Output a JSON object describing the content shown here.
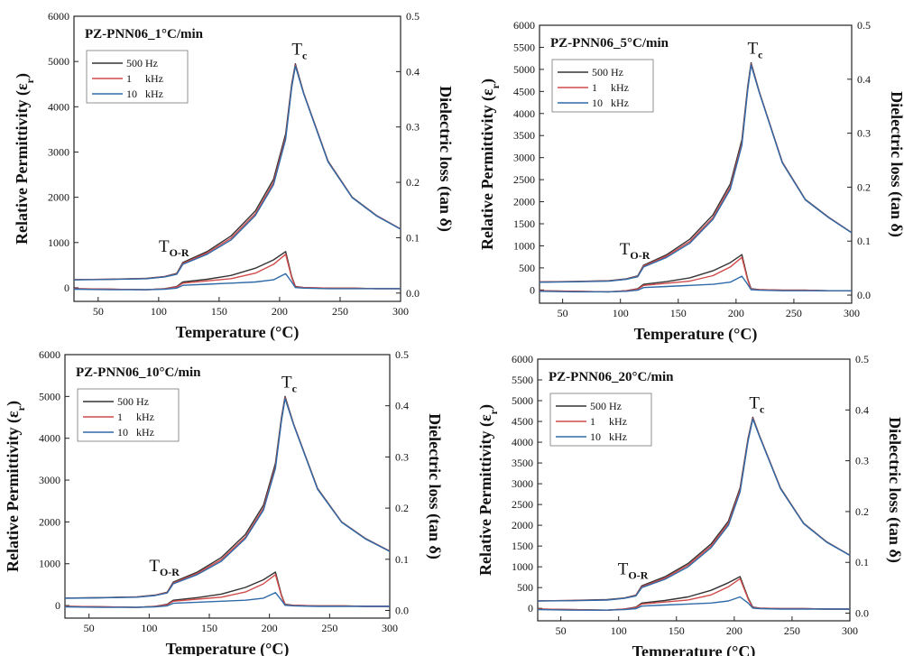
{
  "chart_data": [
    {
      "type": "line",
      "title": "PZ-PNN06_1°C/min",
      "xlabel": "Temperature (°C)",
      "ylabel": "Relative Permittivity (εr)",
      "y2label": "Dielectric loss (tan δ)",
      "xlim": [
        30,
        300
      ],
      "ylim": [
        -300,
        6000
      ],
      "y2lim": [
        -0.015,
        0.5
      ],
      "xticks": [
        50,
        100,
        150,
        200,
        250,
        300
      ],
      "yticks": [
        0,
        1000,
        2000,
        3000,
        4000,
        5000,
        6000
      ],
      "y2ticks": [
        0.0,
        0.1,
        0.2,
        0.3,
        0.4,
        0.5
      ],
      "legend_placement": "top-left",
      "annotations": [
        "TO-R",
        "Tc"
      ],
      "x": [
        30,
        60,
        90,
        105,
        115,
        120,
        140,
        160,
        180,
        195,
        205,
        210,
        213,
        220,
        240,
        260,
        280,
        300
      ],
      "series": [
        {
          "name": "500 Hz",
          "color": "#333333",
          "axis": "permittivity",
          "values": [
            180,
            190,
            210,
            250,
            320,
            560,
            800,
            1150,
            1700,
            2400,
            3400,
            4500,
            4950,
            4300,
            2800,
            2000,
            1600,
            1300
          ]
        },
        {
          "name": "1 kHz",
          "color": "#d04a4a",
          "axis": "permittivity",
          "values": [
            180,
            188,
            205,
            245,
            310,
            540,
            770,
            1100,
            1640,
            2330,
            3330,
            4450,
            4920,
            4290,
            2790,
            1995,
            1595,
            1300
          ]
        },
        {
          "name": "10 kHz",
          "color": "#2f6aa8",
          "axis": "permittivity",
          "values": [
            175,
            185,
            200,
            240,
            300,
            520,
            740,
            1060,
            1600,
            2280,
            3280,
            4420,
            4900,
            4280,
            2780,
            1990,
            1590,
            1295
          ]
        },
        {
          "name": "500 Hz",
          "color": "#333333",
          "axis": "loss",
          "values": [
            0.008,
            0.007,
            0.006,
            0.008,
            0.012,
            0.02,
            0.025,
            0.032,
            0.045,
            0.06,
            0.075,
            0.03,
            0.012,
            0.01,
            0.009,
            0.009,
            0.008,
            0.008
          ]
        },
        {
          "name": "1 kHz",
          "color": "#d04a4a",
          "axis": "loss",
          "values": [
            0.008,
            0.007,
            0.006,
            0.008,
            0.011,
            0.018,
            0.022,
            0.026,
            0.036,
            0.052,
            0.07,
            0.028,
            0.011,
            0.01,
            0.009,
            0.009,
            0.008,
            0.008
          ]
        },
        {
          "name": "10 kHz",
          "color": "#2f6aa8",
          "axis": "loss",
          "values": [
            0.007,
            0.006,
            0.006,
            0.007,
            0.009,
            0.014,
            0.016,
            0.018,
            0.02,
            0.024,
            0.035,
            0.02,
            0.01,
            0.009,
            0.008,
            0.008,
            0.008,
            0.008
          ]
        }
      ]
    },
    {
      "type": "line",
      "title": "PZ-PNN06_5°C/min",
      "xlabel": "Temperature (°C)",
      "ylabel": "Relative Permittivity (εr)",
      "y2label": "Dielectric loss (tan δ)",
      "xlim": [
        30,
        300
      ],
      "ylim": [
        -300,
        6000
      ],
      "y2lim": [
        -0.015,
        0.5
      ],
      "xticks": [
        50,
        100,
        150,
        200,
        250,
        300
      ],
      "yticks": [
        0,
        500,
        1000,
        1500,
        2000,
        2500,
        3000,
        3500,
        4000,
        4500,
        5000,
        5500,
        6000
      ],
      "y2ticks": [
        0.0,
        0.1,
        0.2,
        0.3,
        0.4,
        0.5
      ],
      "legend_placement": "top-left",
      "annotations": [
        "TO-R",
        "Tc"
      ],
      "x": [
        30,
        60,
        90,
        105,
        115,
        120,
        140,
        160,
        180,
        195,
        205,
        210,
        213,
        220,
        240,
        260,
        280,
        300
      ],
      "series": [
        {
          "name": "500 Hz",
          "color": "#333333",
          "axis": "permittivity",
          "values": [
            180,
            190,
            210,
            250,
            320,
            560,
            800,
            1150,
            1700,
            2400,
            3400,
            4600,
            5150,
            4500,
            2900,
            2050,
            1650,
            1300
          ]
        },
        {
          "name": "1 kHz",
          "color": "#d04a4a",
          "axis": "permittivity",
          "values": [
            180,
            188,
            205,
            245,
            310,
            540,
            770,
            1100,
            1640,
            2330,
            3330,
            4550,
            5120,
            4490,
            2890,
            2045,
            1645,
            1300
          ]
        },
        {
          "name": "10 kHz",
          "color": "#2f6aa8",
          "axis": "permittivity",
          "values": [
            175,
            185,
            200,
            240,
            300,
            520,
            740,
            1060,
            1600,
            2280,
            3280,
            4520,
            5100,
            4480,
            2880,
            2040,
            1640,
            1295
          ]
        },
        {
          "name": "500 Hz",
          "color": "#333333",
          "axis": "loss",
          "values": [
            0.008,
            0.007,
            0.006,
            0.008,
            0.012,
            0.02,
            0.025,
            0.032,
            0.045,
            0.06,
            0.075,
            0.03,
            0.012,
            0.01,
            0.009,
            0.009,
            0.008,
            0.008
          ]
        },
        {
          "name": "1 kHz",
          "color": "#d04a4a",
          "axis": "loss",
          "values": [
            0.008,
            0.007,
            0.006,
            0.008,
            0.011,
            0.018,
            0.022,
            0.026,
            0.036,
            0.052,
            0.07,
            0.028,
            0.011,
            0.01,
            0.009,
            0.009,
            0.008,
            0.008
          ]
        },
        {
          "name": "10 kHz",
          "color": "#2f6aa8",
          "axis": "loss",
          "values": [
            0.007,
            0.006,
            0.006,
            0.007,
            0.009,
            0.014,
            0.016,
            0.018,
            0.02,
            0.024,
            0.035,
            0.02,
            0.01,
            0.009,
            0.008,
            0.008,
            0.008,
            0.008
          ]
        }
      ]
    },
    {
      "type": "line",
      "title": "PZ-PNN06_10°C/min",
      "xlabel": "Temperature (°C)",
      "ylabel": "Relative Permittivity (εr)",
      "y2label": "Dielectric loss (tan δ)",
      "xlim": [
        30,
        300
      ],
      "ylim": [
        -300,
        6000
      ],
      "y2lim": [
        -0.015,
        0.5
      ],
      "xticks": [
        50,
        100,
        150,
        200,
        250,
        300
      ],
      "yticks": [
        0,
        1000,
        2000,
        3000,
        4000,
        5000,
        6000
      ],
      "y2ticks": [
        0.0,
        0.1,
        0.2,
        0.3,
        0.4,
        0.5
      ],
      "legend_placement": "top-left",
      "annotations": [
        "TO-R",
        "Tc"
      ],
      "x": [
        30,
        60,
        90,
        105,
        115,
        120,
        140,
        160,
        180,
        195,
        205,
        210,
        213,
        220,
        240,
        260,
        280,
        300
      ],
      "series": [
        {
          "name": "500 Hz",
          "color": "#333333",
          "axis": "permittivity",
          "values": [
            180,
            190,
            210,
            250,
            320,
            560,
            800,
            1150,
            1700,
            2400,
            3400,
            4500,
            5000,
            4350,
            2800,
            2000,
            1600,
            1300
          ]
        },
        {
          "name": "1 kHz",
          "color": "#d04a4a",
          "axis": "permittivity",
          "values": [
            180,
            188,
            205,
            245,
            310,
            540,
            770,
            1100,
            1640,
            2330,
            3330,
            4450,
            4970,
            4340,
            2790,
            1995,
            1595,
            1300
          ]
        },
        {
          "name": "10 kHz",
          "color": "#2f6aa8",
          "axis": "permittivity",
          "values": [
            175,
            185,
            200,
            240,
            300,
            520,
            740,
            1060,
            1600,
            2280,
            3280,
            4420,
            4950,
            4330,
            2780,
            1990,
            1590,
            1295
          ]
        },
        {
          "name": "500 Hz",
          "color": "#333333",
          "axis": "loss",
          "values": [
            0.008,
            0.007,
            0.006,
            0.008,
            0.012,
            0.02,
            0.025,
            0.032,
            0.045,
            0.06,
            0.075,
            0.03,
            0.012,
            0.01,
            0.009,
            0.009,
            0.008,
            0.008
          ]
        },
        {
          "name": "1 kHz",
          "color": "#d04a4a",
          "axis": "loss",
          "values": [
            0.008,
            0.007,
            0.006,
            0.008,
            0.011,
            0.018,
            0.022,
            0.026,
            0.036,
            0.052,
            0.07,
            0.028,
            0.011,
            0.01,
            0.009,
            0.009,
            0.008,
            0.008
          ]
        },
        {
          "name": "10 kHz",
          "color": "#2f6aa8",
          "axis": "loss",
          "values": [
            0.007,
            0.006,
            0.006,
            0.007,
            0.009,
            0.014,
            0.016,
            0.018,
            0.02,
            0.024,
            0.035,
            0.02,
            0.01,
            0.009,
            0.008,
            0.008,
            0.008,
            0.008
          ]
        }
      ]
    },
    {
      "type": "line",
      "title": "PZ-PNN06_20°C/min",
      "xlabel": "Temperature (°C)",
      "ylabel": "Relative Permittivity (εr)",
      "y2label": "Dielectric loss (tan δ)",
      "xlim": [
        30,
        300
      ],
      "ylim": [
        -300,
        6000
      ],
      "y2lim": [
        -0.015,
        0.5
      ],
      "xticks": [
        50,
        100,
        150,
        200,
        250,
        300
      ],
      "yticks": [
        0,
        500,
        1000,
        1500,
        2000,
        2500,
        3000,
        3500,
        4000,
        4500,
        5000,
        5500,
        6000
      ],
      "y2ticks": [
        0.0,
        0.1,
        0.2,
        0.3,
        0.4,
        0.5
      ],
      "legend_placement": "top-left",
      "annotations": [
        "TO-R",
        "Tc"
      ],
      "x": [
        30,
        60,
        90,
        105,
        115,
        120,
        140,
        160,
        180,
        195,
        205,
        212,
        216,
        222,
        240,
        260,
        280,
        300
      ],
      "series": [
        {
          "name": "500 Hz",
          "color": "#333333",
          "axis": "permittivity",
          "values": [
            180,
            190,
            210,
            250,
            320,
            540,
            760,
            1080,
            1550,
            2100,
            2900,
            4100,
            4600,
            4150,
            2900,
            2050,
            1600,
            1280
          ]
        },
        {
          "name": "1 kHz",
          "color": "#d04a4a",
          "axis": "permittivity",
          "values": [
            180,
            188,
            205,
            245,
            310,
            520,
            730,
            1040,
            1500,
            2050,
            2850,
            4060,
            4580,
            4140,
            2890,
            2045,
            1595,
            1280
          ]
        },
        {
          "name": "10 kHz",
          "color": "#2f6aa8",
          "axis": "permittivity",
          "values": [
            175,
            185,
            200,
            240,
            300,
            500,
            700,
            1000,
            1460,
            2000,
            2800,
            4030,
            4560,
            4130,
            2880,
            2040,
            1590,
            1275
          ]
        },
        {
          "name": "500 Hz",
          "color": "#333333",
          "axis": "loss",
          "values": [
            0.008,
            0.007,
            0.006,
            0.008,
            0.012,
            0.02,
            0.025,
            0.032,
            0.045,
            0.06,
            0.072,
            0.03,
            0.012,
            0.01,
            0.009,
            0.009,
            0.008,
            0.008
          ]
        },
        {
          "name": "1 kHz",
          "color": "#d04a4a",
          "axis": "loss",
          "values": [
            0.008,
            0.007,
            0.006,
            0.008,
            0.011,
            0.018,
            0.022,
            0.026,
            0.036,
            0.052,
            0.068,
            0.028,
            0.011,
            0.01,
            0.009,
            0.009,
            0.008,
            0.008
          ]
        },
        {
          "name": "10 kHz",
          "color": "#2f6aa8",
          "axis": "loss",
          "values": [
            0.007,
            0.006,
            0.006,
            0.007,
            0.009,
            0.014,
            0.016,
            0.018,
            0.02,
            0.024,
            0.032,
            0.02,
            0.01,
            0.009,
            0.008,
            0.008,
            0.008,
            0.008
          ]
        }
      ]
    }
  ]
}
